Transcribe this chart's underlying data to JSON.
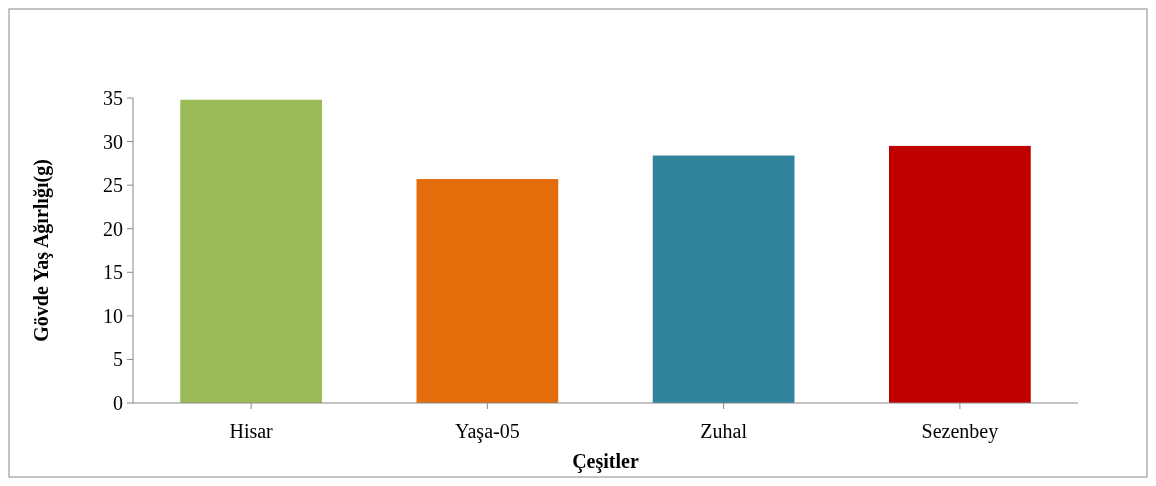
{
  "chart_data": {
    "type": "bar",
    "xlabel": "Çeşitler",
    "ylabel": "Gövde Yaş Ağırlığı(g)",
    "categories": [
      "Hisar",
      "Yaşa-05",
      "Zuhal",
      "Sezenbey"
    ],
    "values": [
      34.8,
      25.7,
      28.4,
      29.5
    ],
    "colors": [
      "#9bbb59",
      "#e46c0a",
      "#31849b",
      "#c00000"
    ],
    "ylim": [
      0,
      35
    ],
    "yticks": [
      0,
      5,
      10,
      15,
      20,
      25,
      30,
      35
    ],
    "grid": false
  }
}
